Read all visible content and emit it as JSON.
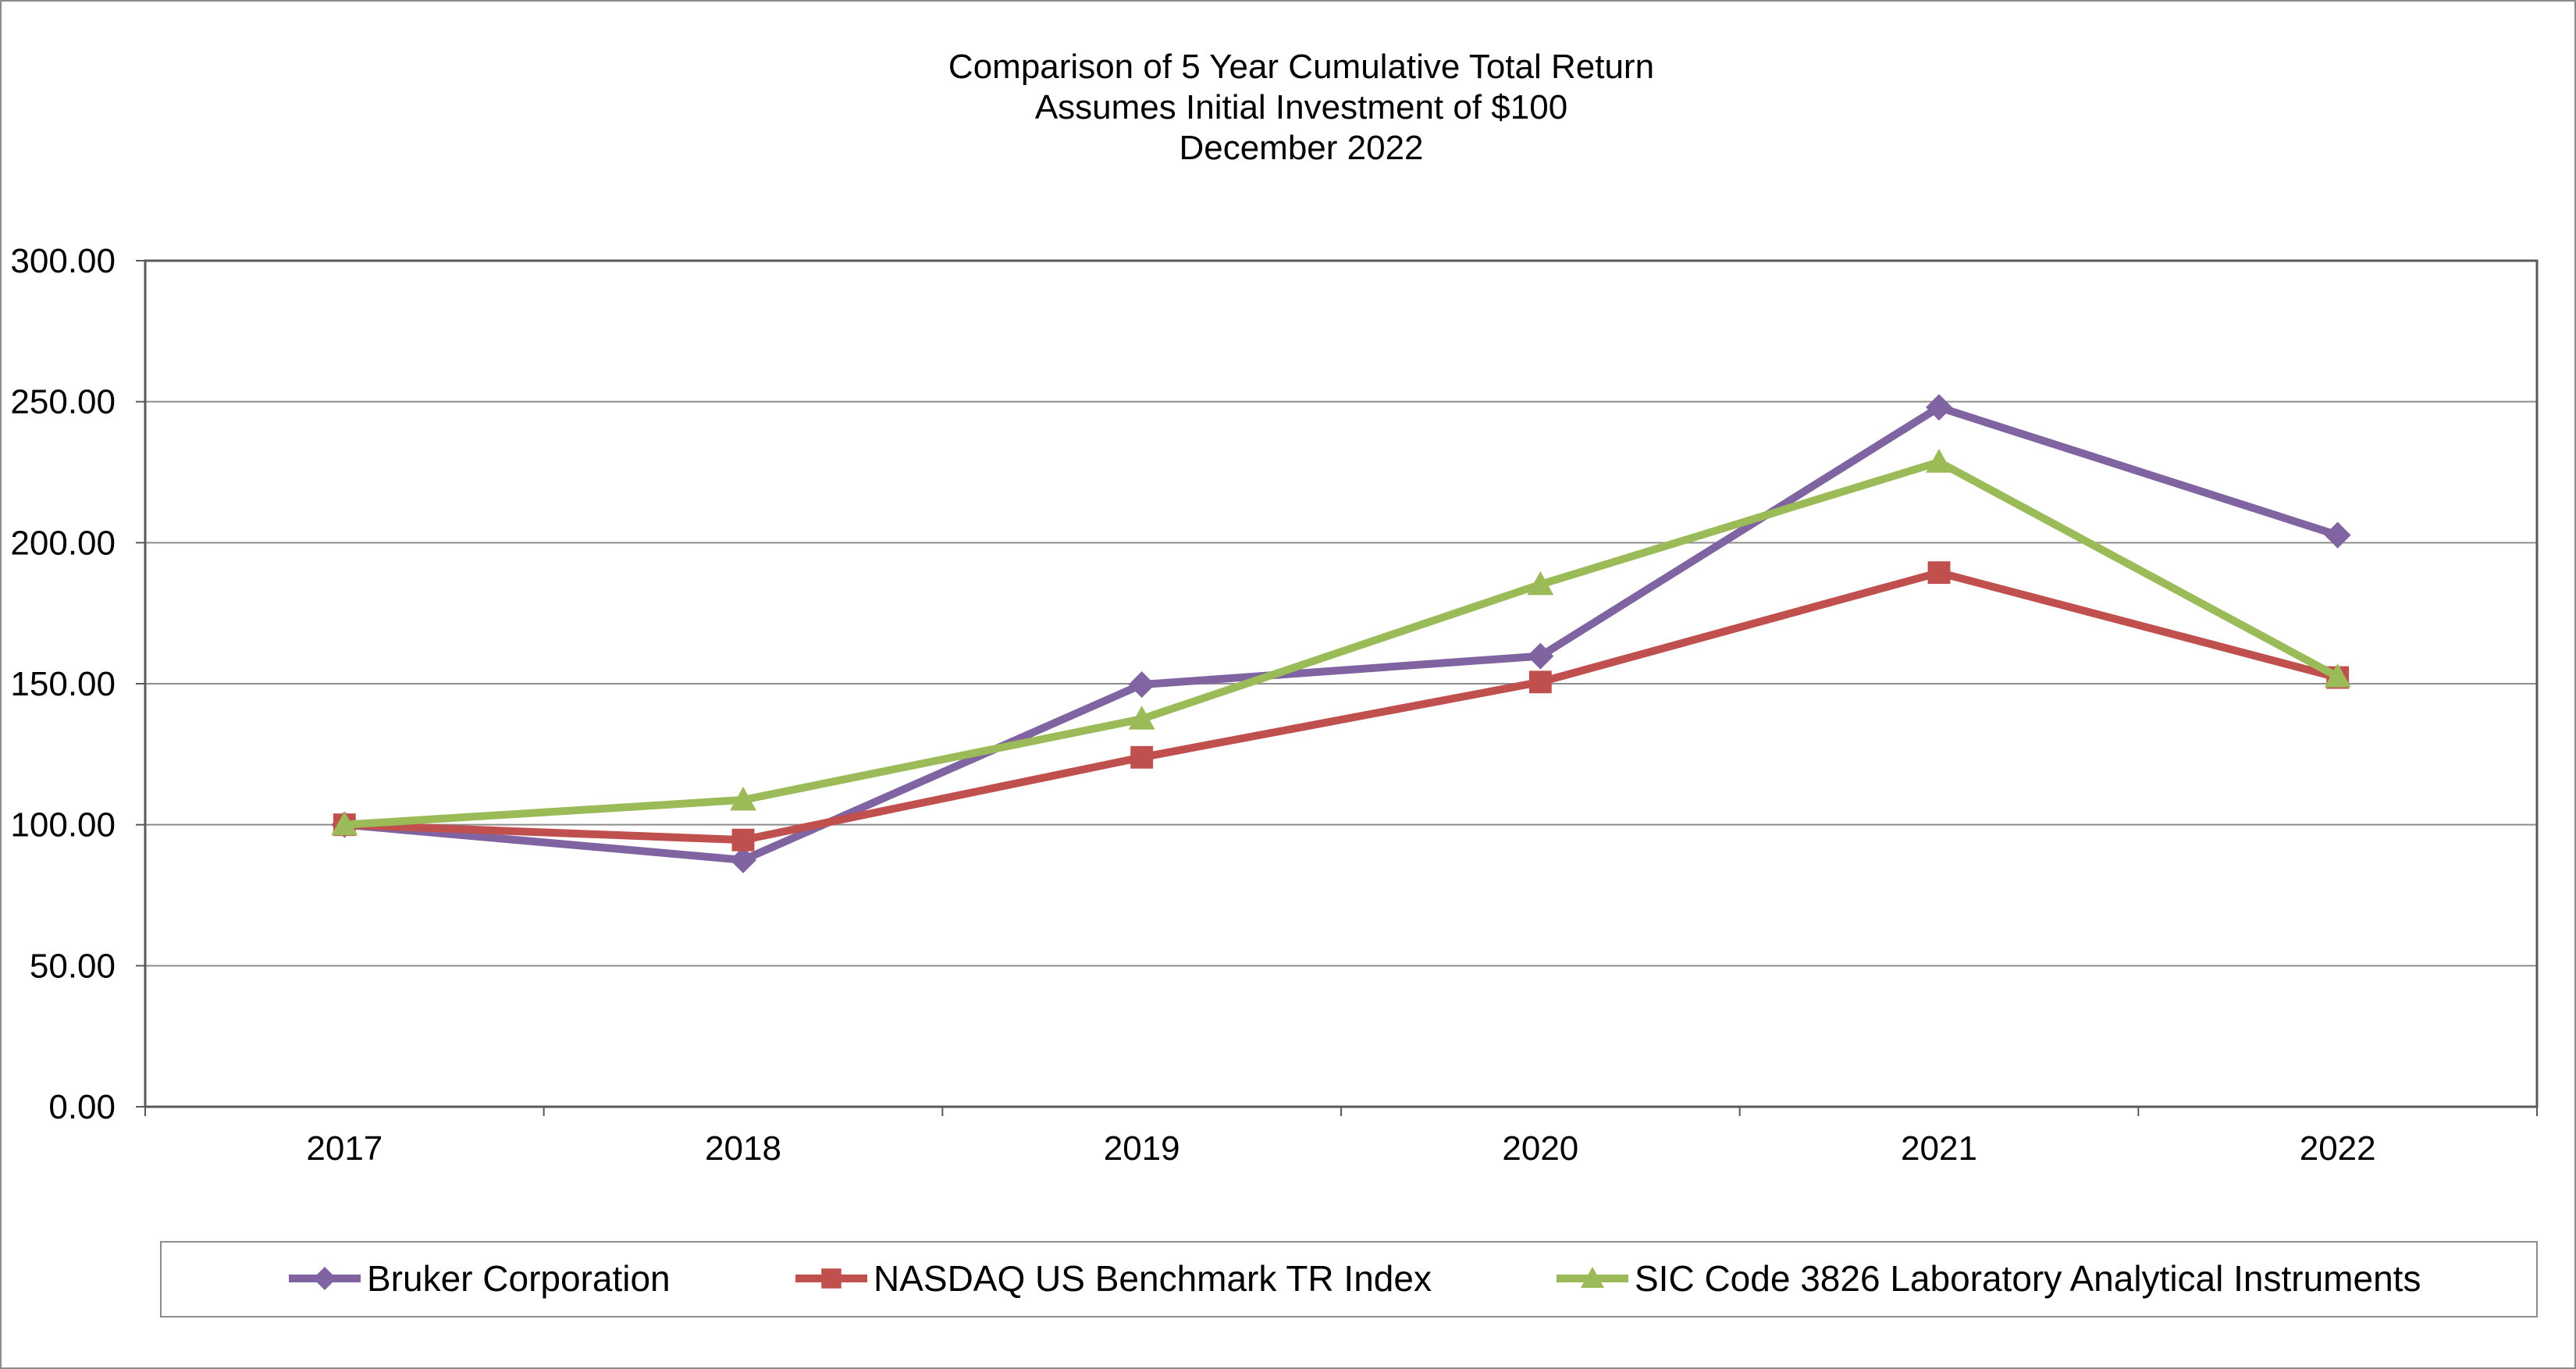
{
  "chart_data": {
    "type": "line",
    "title": [
      "Comparison of 5 Year Cumulative Total Return",
      "Assumes Initial Investment of $100",
      "December 2022"
    ],
    "categories": [
      "2017",
      "2018",
      "2019",
      "2020",
      "2021",
      "2022"
    ],
    "ylim": [
      0,
      300
    ],
    "yticks": [
      "0.00",
      "50.00",
      "100.00",
      "150.00",
      "200.00",
      "250.00",
      "300.00"
    ],
    "grid": true,
    "legend_position": "bottom",
    "series": [
      {
        "name": "Bruker Corporation",
        "color": "#8064A2",
        "marker": "diamond",
        "values": [
          100,
          87.5,
          149.7,
          159.8,
          248,
          202.7
        ]
      },
      {
        "name": "NASDAQ US Benchmark TR Index",
        "color": "#C0504D",
        "marker": "square",
        "values": [
          100,
          94.6,
          123.9,
          150.6,
          189.4,
          152.2
        ]
      },
      {
        "name": "SIC Code 3826 Laboratory Analytical Instruments",
        "color": "#9BBB59",
        "marker": "triangle",
        "values": [
          100,
          108.8,
          137.5,
          185.2,
          228.6,
          152.5
        ]
      }
    ]
  }
}
